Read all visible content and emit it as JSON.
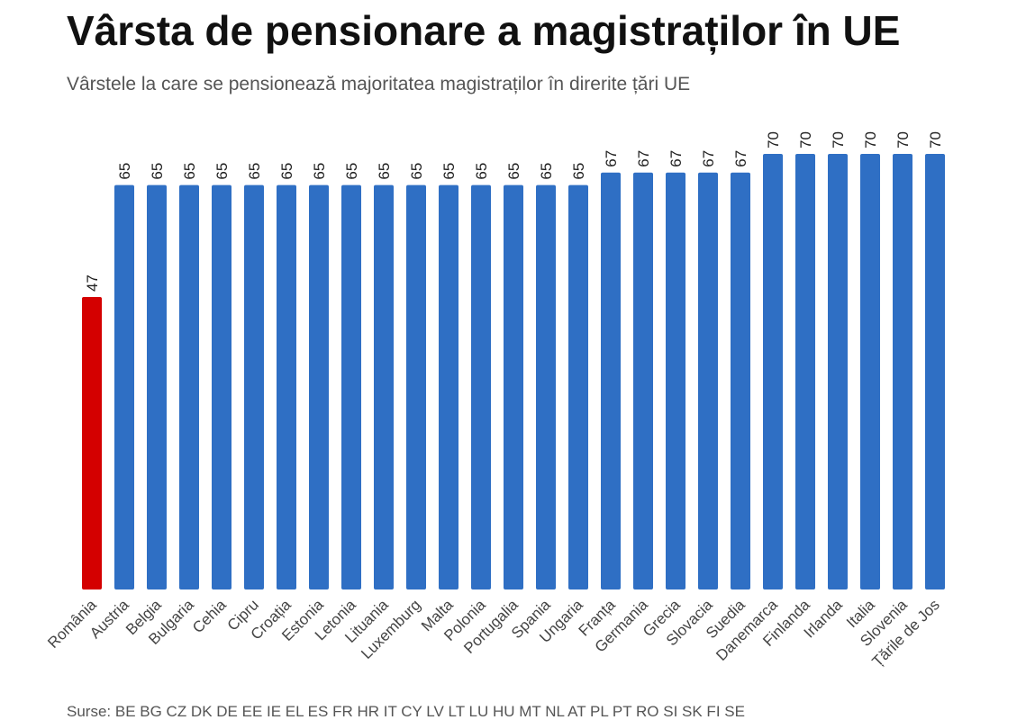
{
  "chart_data": {
    "type": "bar",
    "title": "Vârsta de pensionare a magistraților în UE",
    "subtitle": "Vârstele la care se pensionează majoritatea magistraților în direrite țări UE",
    "categories": [
      "România",
      "Austria",
      "Belgia",
      "Bulgaria",
      "Cehia",
      "Cipru",
      "Croația",
      "Estonia",
      "Letonia",
      "Lituania",
      "Luxemburg",
      "Malta",
      "Polonia",
      "Portugalia",
      "Spania",
      "Ungaria",
      "Franța",
      "Germania",
      "Grecia",
      "Slovacia",
      "Suedia",
      "Danemarca",
      "Finlanda",
      "Irlanda",
      "Italia",
      "Slovenia",
      "Țările de Jos"
    ],
    "values": [
      47,
      65,
      65,
      65,
      65,
      65,
      65,
      65,
      65,
      65,
      65,
      65,
      65,
      65,
      65,
      65,
      67,
      67,
      67,
      67,
      67,
      70,
      70,
      70,
      70,
      70,
      70
    ],
    "colors": [
      "#d40000",
      "#2f6fc4",
      "#2f6fc4",
      "#2f6fc4",
      "#2f6fc4",
      "#2f6fc4",
      "#2f6fc4",
      "#2f6fc4",
      "#2f6fc4",
      "#2f6fc4",
      "#2f6fc4",
      "#2f6fc4",
      "#2f6fc4",
      "#2f6fc4",
      "#2f6fc4",
      "#2f6fc4",
      "#2f6fc4",
      "#2f6fc4",
      "#2f6fc4",
      "#2f6fc4",
      "#2f6fc4",
      "#2f6fc4",
      "#2f6fc4",
      "#2f6fc4",
      "#2f6fc4",
      "#2f6fc4",
      "#2f6fc4"
    ],
    "source": "Surse: BE BG CZ DK DE EE IE EL ES FR HR IT CY LV LT LU HU MT NL AT PL PT RO SI SK FI SE"
  }
}
